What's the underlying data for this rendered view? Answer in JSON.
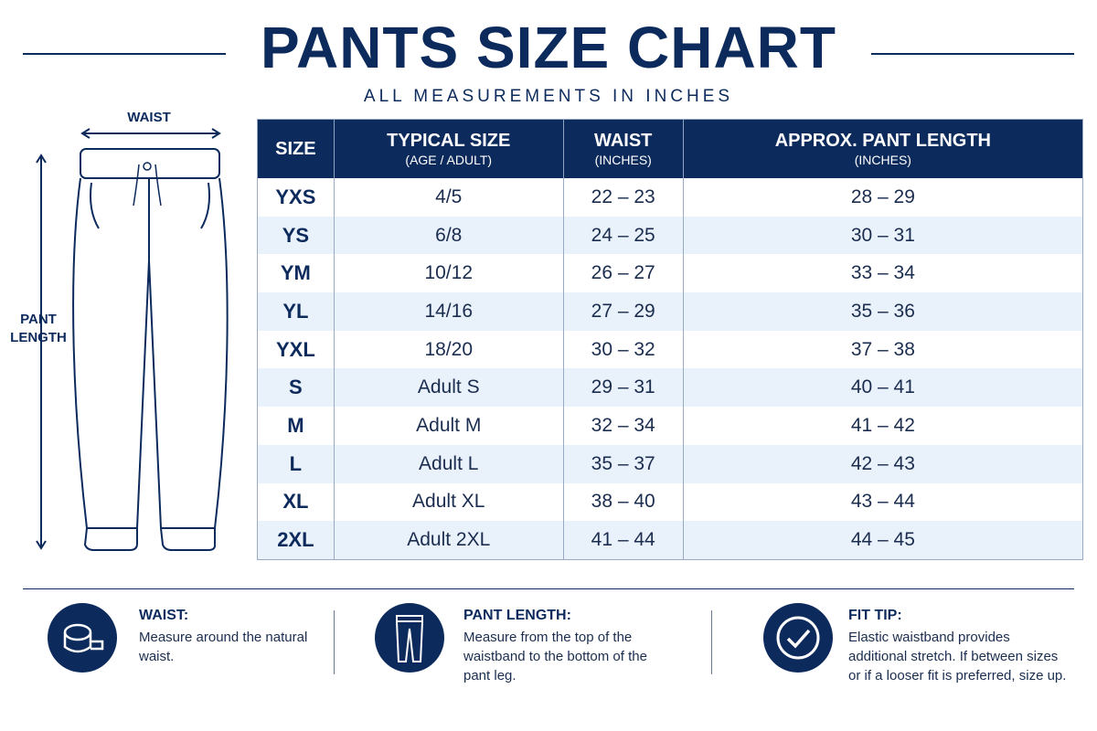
{
  "header": {
    "title": "PANTS SIZE CHART",
    "subtitle": "ALL MEASUREMENTS IN INCHES"
  },
  "diagram": {
    "waist_label": "WAIST",
    "length_label": "PANT LENGTH"
  },
  "table": {
    "columns": [
      {
        "title": "SIZE"
      },
      {
        "title": "TYPICAL SIZE",
        "subtitle": "(AGE / ADULT)"
      },
      {
        "title": "WAIST",
        "subtitle": "(INCHES)"
      },
      {
        "title": "APPROX. PANT LENGTH",
        "subtitle": "(INCHES)"
      }
    ],
    "rows": [
      [
        "YXS",
        "4/5",
        "22 – 23",
        "28 – 29"
      ],
      [
        "YS",
        "6/8",
        "24 – 25",
        "30 – 31"
      ],
      [
        "YM",
        "10/12",
        "26 – 27",
        "33 – 34"
      ],
      [
        "YL",
        "14/16",
        "27 – 29",
        "35 – 36"
      ],
      [
        "YXL",
        "18/20",
        "30 – 32",
        "37 – 38"
      ],
      [
        "S",
        "Adult S",
        "29 – 31",
        "40 – 41"
      ],
      [
        "M",
        "Adult M",
        "32 – 34",
        "41 – 42"
      ],
      [
        "L",
        "Adult L",
        "35 – 37",
        "42 – 43"
      ],
      [
        "XL",
        "Adult XL",
        "38 – 40",
        "43 – 44"
      ],
      [
        "2XL",
        "Adult 2XL",
        "41 – 44",
        "44 – 45"
      ]
    ]
  },
  "tips": [
    {
      "title": "WAIST:",
      "text": "Measure around the natural waist."
    },
    {
      "title": "PANT LENGTH:",
      "text": "Measure from the top of the waistband to the bottom of the pant leg."
    },
    {
      "title": "FIT TIP:",
      "text": "Elastic waistband provides additional stretch. If between sizes or if a looser fit is preferred, size up."
    }
  ]
}
